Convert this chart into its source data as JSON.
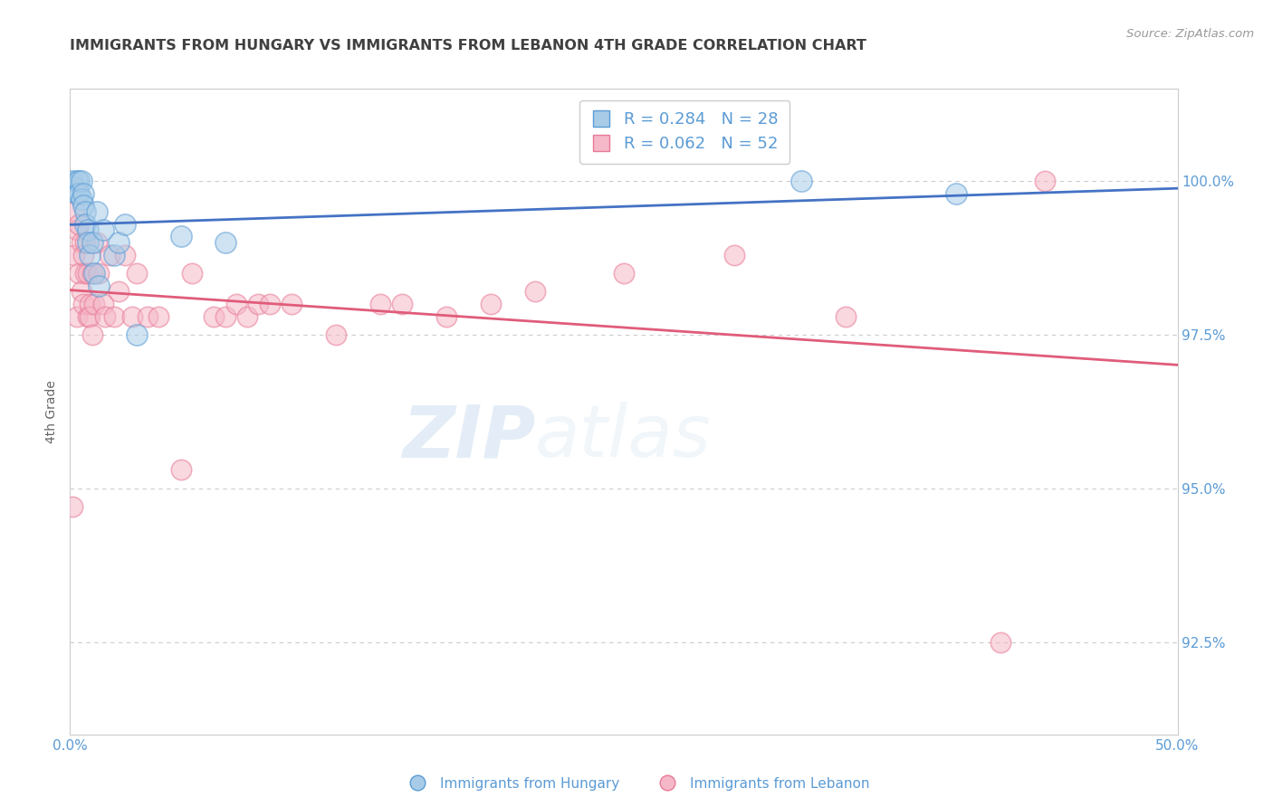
{
  "title": "IMMIGRANTS FROM HUNGARY VS IMMIGRANTS FROM LEBANON 4TH GRADE CORRELATION CHART",
  "source": "Source: ZipAtlas.com",
  "ylabel": "4th Grade",
  "xlim": [
    0.0,
    0.5
  ],
  "ylim": [
    91.0,
    101.5
  ],
  "yticks": [
    92.5,
    95.0,
    97.5,
    100.0
  ],
  "xticks": [
    0.0,
    0.1,
    0.2,
    0.3,
    0.4,
    0.5
  ],
  "xtick_labels": [
    "0.0%",
    "",
    "",
    "",
    "",
    "50.0%"
  ],
  "ytick_labels": [
    "92.5%",
    "95.0%",
    "97.5%",
    "100.0%"
  ],
  "hungary_color": "#a8cce8",
  "hungary_edge": "#5b9bd5",
  "lebanon_color": "#f5b8c8",
  "lebanon_edge": "#e87a96",
  "trend_blue": "#4472c4",
  "trend_pink": "#e05c7a",
  "legend_text_blue": "R = 0.284   N = 28",
  "legend_text_pink": "R = 0.062   N = 52",
  "legend_label_hungary": "Immigrants from Hungary",
  "legend_label_lebanon": "Immigrants from Lebanon",
  "watermark_zip": "ZIP",
  "watermark_atlas": "atlas",
  "hungary_x": [
    0.001,
    0.002,
    0.003,
    0.003,
    0.004,
    0.004,
    0.005,
    0.005,
    0.006,
    0.006,
    0.007,
    0.007,
    0.008,
    0.008,
    0.009,
    0.01,
    0.011,
    0.012,
    0.013,
    0.015,
    0.02,
    0.022,
    0.025,
    0.03,
    0.05,
    0.07,
    0.33,
    0.4
  ],
  "hungary_y": [
    100.0,
    99.9,
    100.0,
    99.8,
    100.0,
    99.8,
    100.0,
    99.7,
    99.8,
    99.6,
    99.5,
    99.3,
    99.2,
    99.0,
    98.8,
    99.0,
    98.5,
    99.5,
    98.3,
    99.2,
    98.8,
    99.0,
    99.3,
    97.5,
    99.1,
    99.0,
    100.0,
    99.8
  ],
  "lebanon_x": [
    0.001,
    0.002,
    0.002,
    0.003,
    0.003,
    0.004,
    0.004,
    0.005,
    0.005,
    0.006,
    0.006,
    0.007,
    0.007,
    0.008,
    0.008,
    0.009,
    0.009,
    0.01,
    0.01,
    0.011,
    0.012,
    0.013,
    0.015,
    0.016,
    0.018,
    0.02,
    0.022,
    0.025,
    0.028,
    0.03,
    0.035,
    0.04,
    0.05,
    0.055,
    0.065,
    0.07,
    0.075,
    0.08,
    0.085,
    0.09,
    0.1,
    0.12,
    0.14,
    0.15,
    0.17,
    0.19,
    0.21,
    0.25,
    0.3,
    0.35,
    0.42,
    0.44
  ],
  "lebanon_y": [
    94.7,
    99.5,
    98.8,
    99.2,
    97.8,
    99.3,
    98.5,
    99.0,
    98.2,
    98.8,
    98.0,
    99.0,
    98.5,
    98.5,
    97.8,
    98.0,
    97.8,
    98.5,
    97.5,
    98.0,
    99.0,
    98.5,
    98.0,
    97.8,
    98.8,
    97.8,
    98.2,
    98.8,
    97.8,
    98.5,
    97.8,
    97.8,
    95.3,
    98.5,
    97.8,
    97.8,
    98.0,
    97.8,
    98.0,
    98.0,
    98.0,
    97.5,
    98.0,
    98.0,
    97.8,
    98.0,
    98.2,
    98.5,
    98.8,
    97.8,
    92.5,
    100.0
  ],
  "background_color": "#ffffff",
  "grid_color": "#cccccc",
  "axis_color": "#cccccc",
  "label_color": "#5b9bd5",
  "title_color": "#404040"
}
